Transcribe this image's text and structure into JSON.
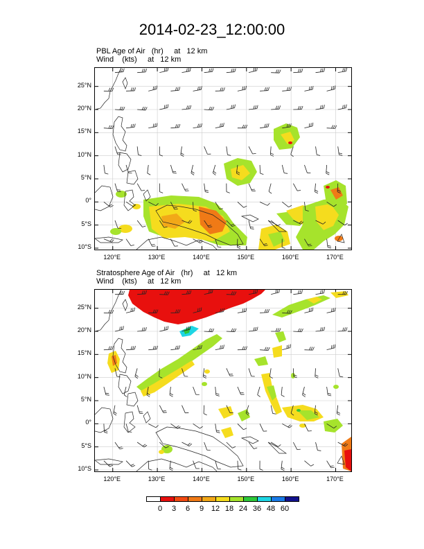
{
  "page": {
    "title": "2014-02-23_12:00:00"
  },
  "panels": [
    {
      "title_line1": "PBL Age of Air   (hr)     at   12 km",
      "title_line2": "Wind    (kts)     at   12 km",
      "lat_labels": [
        "25°N",
        "20°N",
        "15°N",
        "10°N",
        "5°N",
        "0°",
        "5°S",
        "10°S"
      ],
      "lon_labels": [
        "120°E",
        "130°E",
        "140°E",
        "150°E",
        "160°E",
        "170°E"
      ]
    },
    {
      "title_line1": "Stratosphere Age of Air   (hr)     at   12 km",
      "title_line2": "Wind    (kts)     at   12 km",
      "lat_labels": [
        "25°N",
        "20°N",
        "15°N",
        "10°N",
        "5°N",
        "0°",
        "5°S",
        "10°S"
      ],
      "lon_labels": [
        "120°E",
        "130°E",
        "140°E",
        "150°E",
        "160°E",
        "170°E"
      ]
    }
  ],
  "colorbar": {
    "labels": [
      "0",
      "3",
      "6",
      "9",
      "12",
      "18",
      "24",
      "36",
      "48",
      "60"
    ],
    "colors": [
      "#ffffff",
      "#e8100e",
      "#f24a12",
      "#f07a16",
      "#f2a818",
      "#f5dc1e",
      "#a6e32c",
      "#2ec83a",
      "#1ed6e4",
      "#1a7be8",
      "#12128c"
    ]
  },
  "colors": {
    "grid": "#cccccc",
    "coast": "#222222",
    "barb": "#222222"
  }
}
